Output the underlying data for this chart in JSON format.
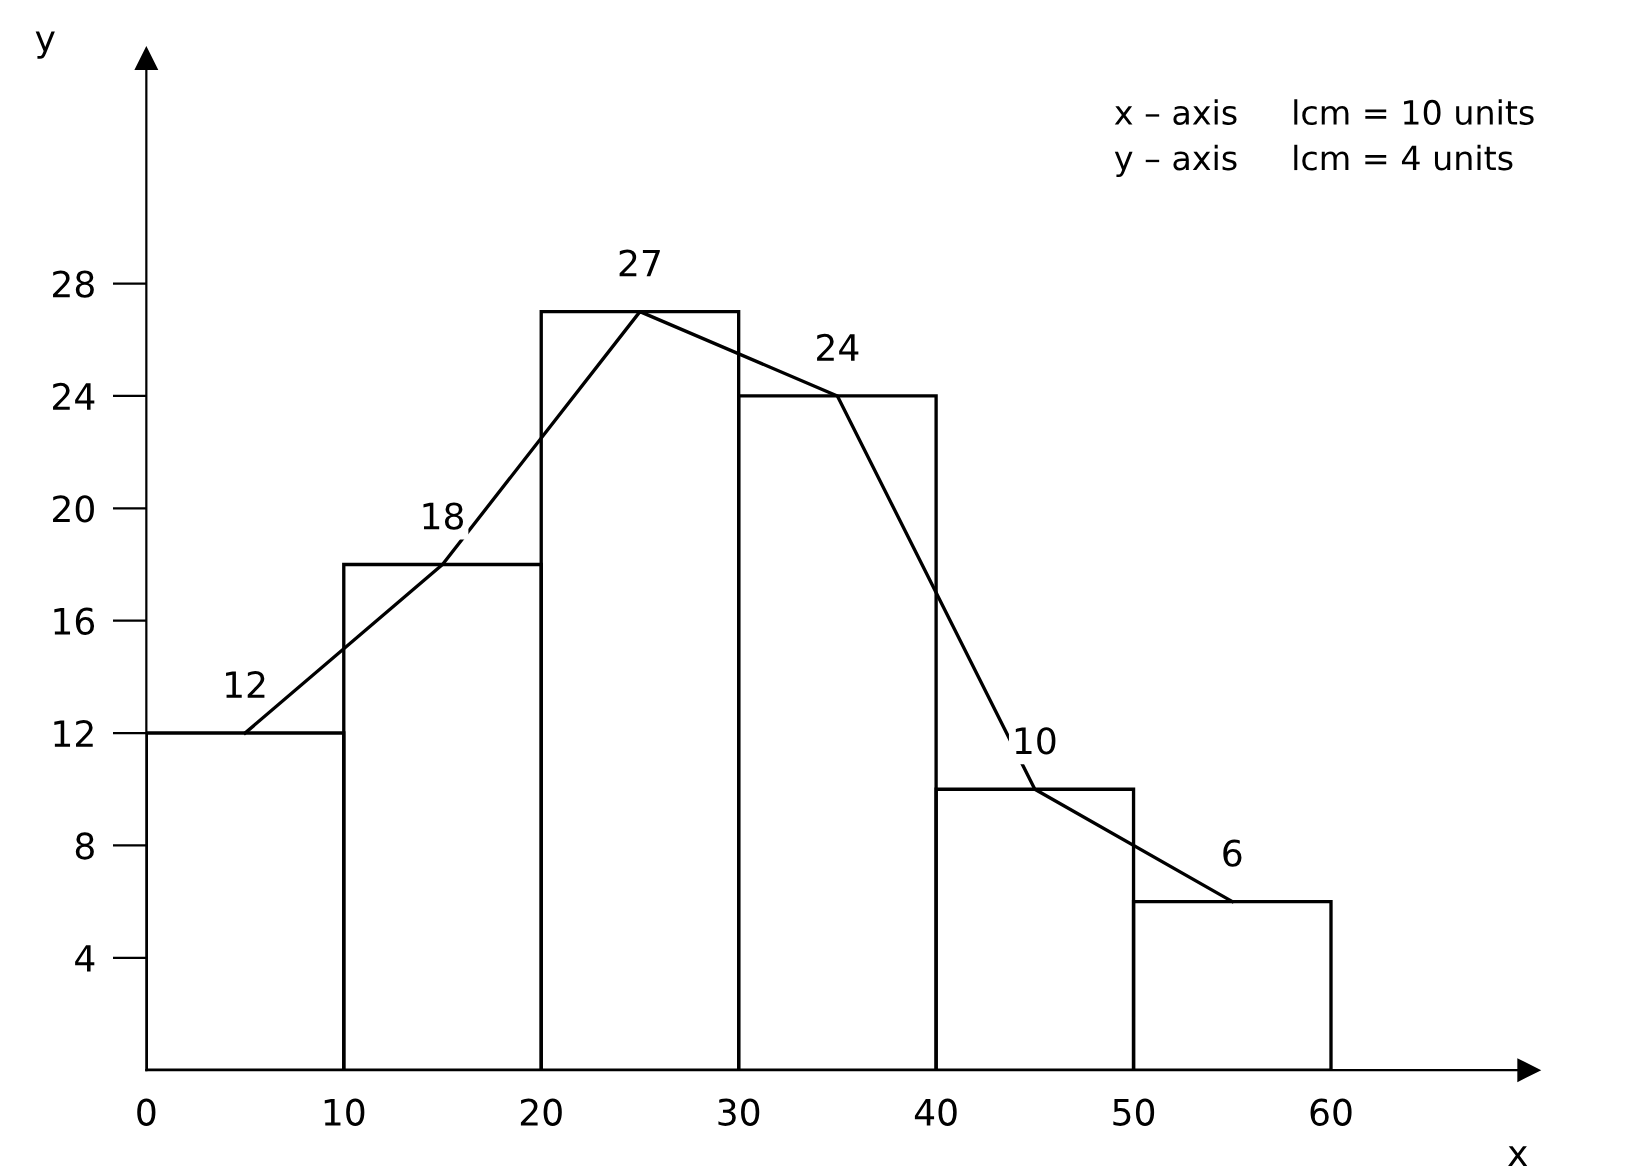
{
  "chart_data": {
    "type": "histogram",
    "xlabel": "x",
    "ylabel": "y",
    "bins": [
      0,
      10,
      20,
      30,
      40,
      50,
      60
    ],
    "series": [
      {
        "color": "#000000",
        "values": [
          12,
          18,
          27,
          24,
          10,
          6
        ],
        "value_labels": [
          "12",
          "18",
          "27",
          "24",
          "10",
          "6"
        ]
      },
      {
        "type": "line",
        "color": "#000000",
        "x": [
          5,
          15,
          25,
          35,
          45,
          55
        ],
        "values": [
          12,
          18,
          27,
          24,
          10,
          6
        ]
      }
    ],
    "xlim": [
      0,
      70
    ],
    "ylim": [
      0,
      36
    ],
    "xticks": [
      0,
      10,
      20,
      30,
      40,
      50,
      60
    ],
    "yticks": [
      4,
      8,
      12,
      16,
      20,
      24,
      28
    ],
    "grid": false,
    "legend": false,
    "annotations": [
      "x – axis     lcm = 10 units",
      "y – axis     lcm = 4 units"
    ]
  }
}
